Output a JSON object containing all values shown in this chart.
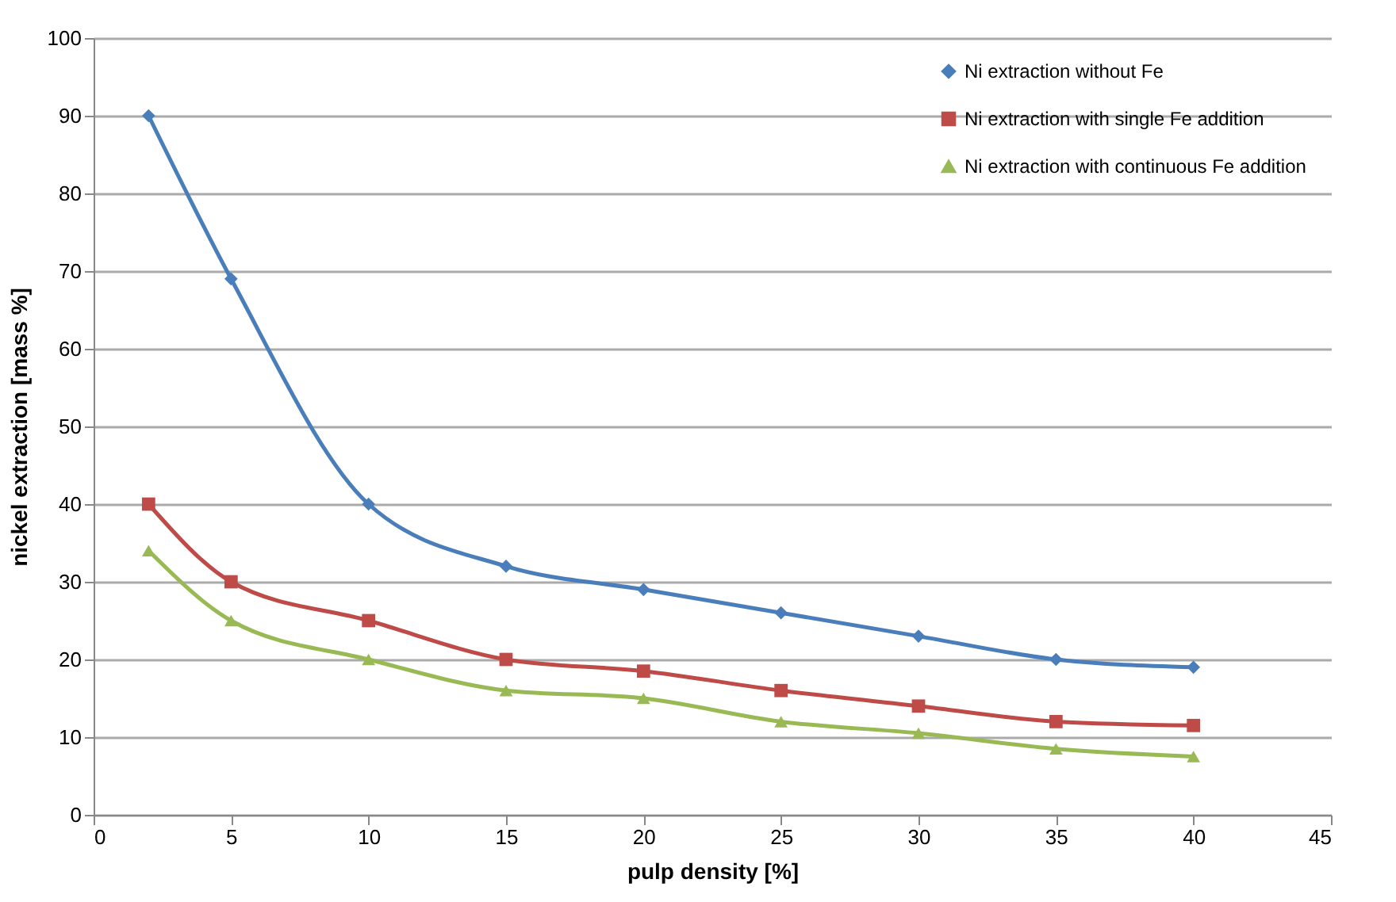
{
  "chart_data": {
    "type": "line",
    "xlabel": "pulp density [%]",
    "ylabel": "nickel extraction [mass %]",
    "x": [
      2,
      5,
      10,
      15,
      20,
      25,
      30,
      35,
      40
    ],
    "series": [
      {
        "name": "Ni extraction without Fe",
        "color": "#4a7ebb",
        "marker": "diamond",
        "values": [
          90,
          69,
          40,
          32,
          29,
          26,
          23,
          20,
          19
        ]
      },
      {
        "name": "Ni extraction with single Fe addition",
        "color": "#be4b48",
        "marker": "square",
        "values": [
          40,
          30,
          25,
          20,
          18.5,
          16,
          14,
          12,
          11.5
        ]
      },
      {
        "name": "Ni extraction with continuous Fe addition",
        "color": "#98b954",
        "marker": "triangle",
        "values": [
          34,
          25,
          20,
          16,
          15,
          12,
          10.5,
          8.5,
          7.5
        ]
      }
    ],
    "xlim": [
      0,
      45
    ],
    "xticks": [
      0,
      5,
      10,
      15,
      20,
      25,
      30,
      35,
      40,
      45
    ],
    "ylim": [
      0,
      100
    ],
    "yticks": [
      0,
      10,
      20,
      30,
      40,
      50,
      60,
      70,
      80,
      90,
      100
    ],
    "grid": "y",
    "legend": "top right",
    "line_style": "solid"
  }
}
